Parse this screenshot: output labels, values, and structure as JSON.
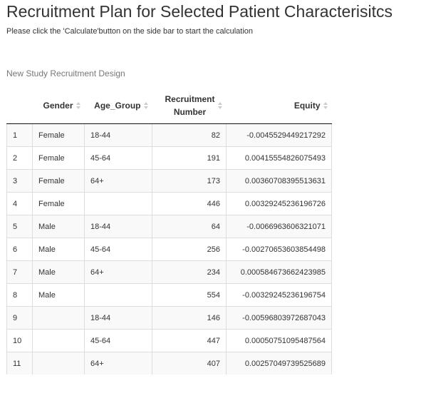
{
  "header": {
    "title": "Recruitment Plan for Selected Patient Characterisitcs",
    "instruction": "Please click the 'Calculate'button on the side bar to start the calculation"
  },
  "table": {
    "caption": "New Study Recruitment Design",
    "columns": {
      "index": "",
      "gender": "Gender",
      "age_group": "Age_Group",
      "recruitment_number_line1": "Recruitment",
      "recruitment_number_line2": "Number",
      "equity": "Equity"
    },
    "sort_icon": "sort-updown-icon",
    "rows": [
      {
        "index": "1",
        "gender": "Female",
        "age_group": "18-44",
        "recruitment_number": "82",
        "equity": "-0.0045529449217292"
      },
      {
        "index": "2",
        "gender": "Female",
        "age_group": "45-64",
        "recruitment_number": "191",
        "equity": "0.00415554826075493"
      },
      {
        "index": "3",
        "gender": "Female",
        "age_group": "64+",
        "recruitment_number": "173",
        "equity": "0.00360708395513631"
      },
      {
        "index": "4",
        "gender": "Female",
        "age_group": "",
        "recruitment_number": "446",
        "equity": "0.00329245236196726"
      },
      {
        "index": "5",
        "gender": "Male",
        "age_group": "18-44",
        "recruitment_number": "64",
        "equity": "-0.0066963606321071"
      },
      {
        "index": "6",
        "gender": "Male",
        "age_group": "45-64",
        "recruitment_number": "256",
        "equity": "-0.00270653603854498"
      },
      {
        "index": "7",
        "gender": "Male",
        "age_group": "64+",
        "recruitment_number": "234",
        "equity": "0.000584673662423985"
      },
      {
        "index": "8",
        "gender": "Male",
        "age_group": "",
        "recruitment_number": "554",
        "equity": "-0.00329245236196754"
      },
      {
        "index": "9",
        "gender": "",
        "age_group": "18-44",
        "recruitment_number": "146",
        "equity": "-0.00596803972687043"
      },
      {
        "index": "10",
        "gender": "",
        "age_group": "45-64",
        "recruitment_number": "447",
        "equity": "0.00050751095487564"
      },
      {
        "index": "11",
        "gender": "",
        "age_group": "64+",
        "recruitment_number": "407",
        "equity": "0.00257049739525689"
      }
    ]
  }
}
